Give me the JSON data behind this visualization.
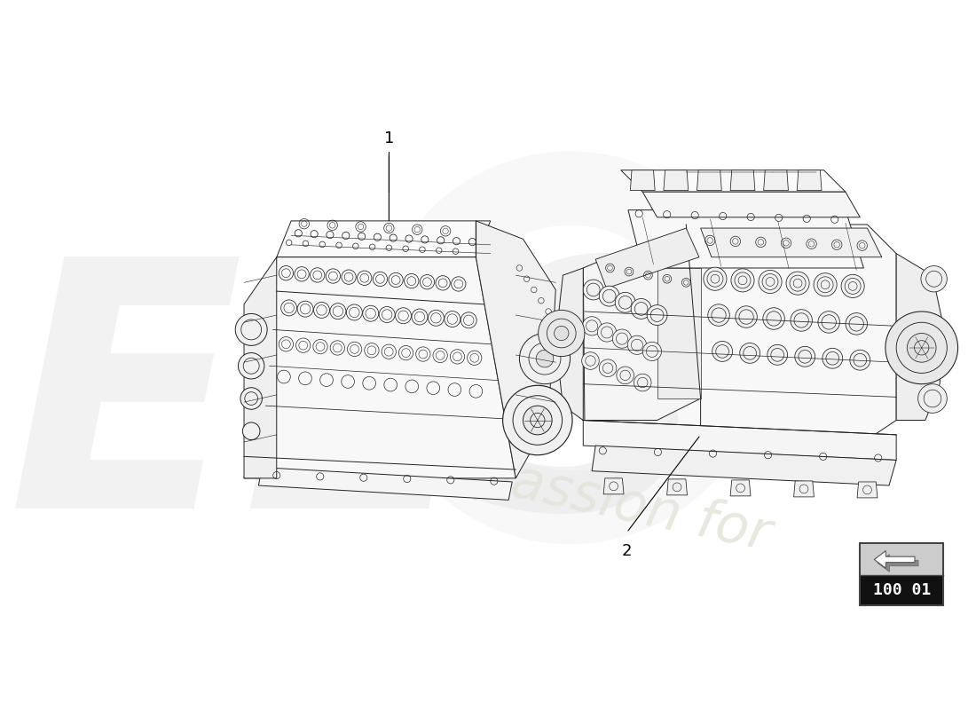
{
  "background_color": "#ffffff",
  "part_number_box_text": "100 01",
  "label_1": "1",
  "label_2": "2",
  "figsize": [
    11.0,
    8.0
  ],
  "dpi": 100,
  "engine_color": "#222222",
  "watermark_els_color": "#e0e0e0",
  "watermark_passion_color": "#e8e8cc",
  "watermark_num_color": "#e0e0e0"
}
